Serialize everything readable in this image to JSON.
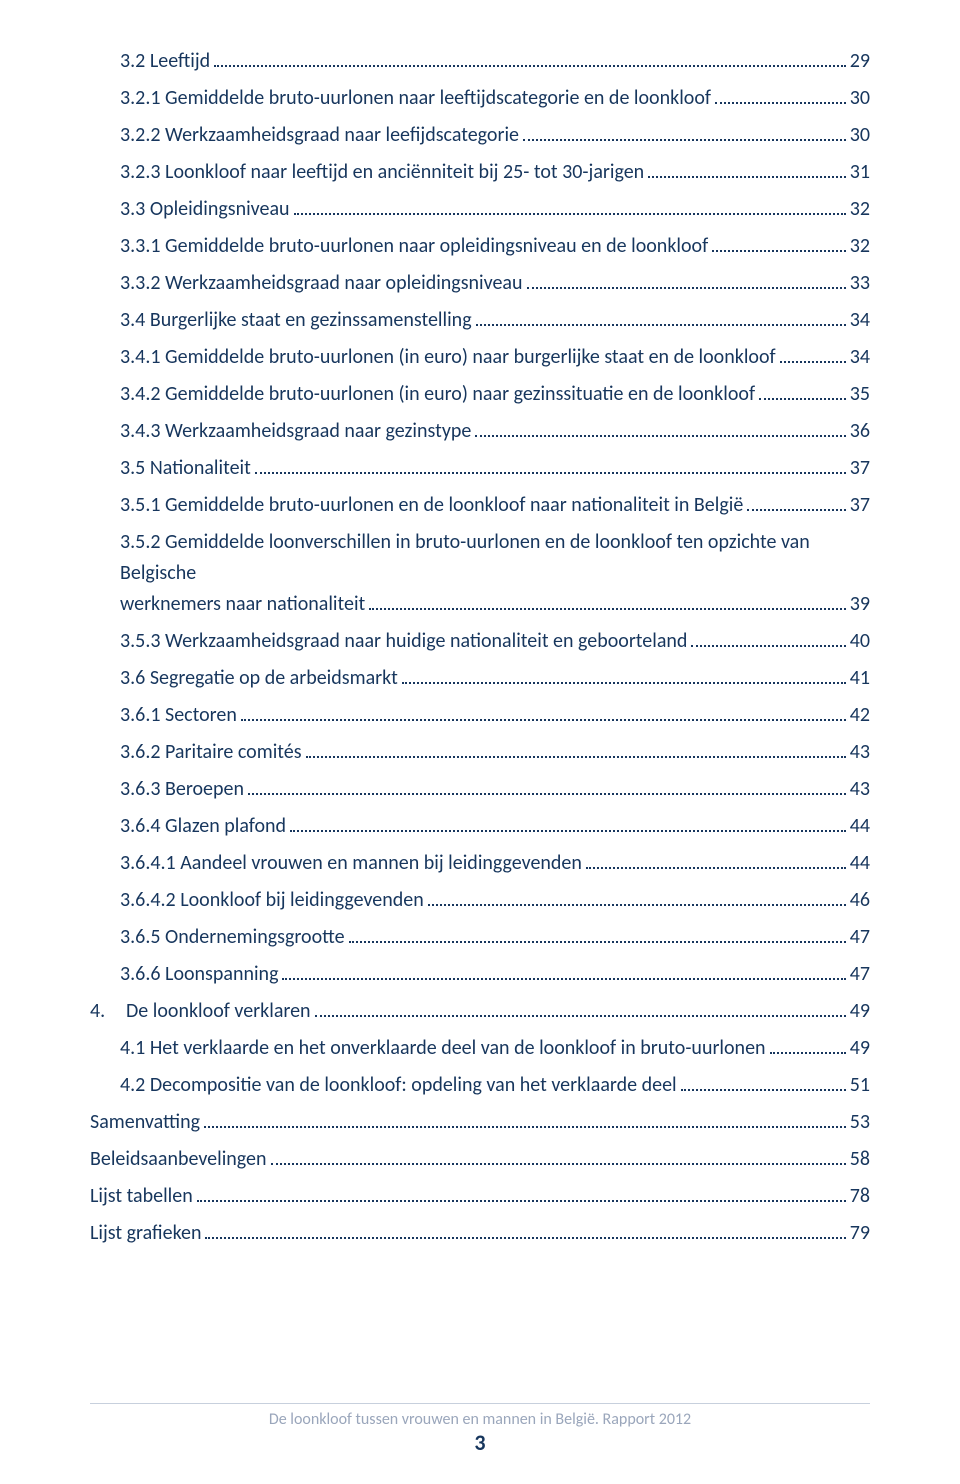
{
  "colors": {
    "text": "#17365d",
    "divider": "#c7d0dd",
    "footer_text": "#9aa6bb",
    "background": "#ffffff"
  },
  "typography": {
    "family": "Calibri",
    "body_size_pt": 15,
    "footer_size_pt": 12
  },
  "toc": {
    "entries": [
      {
        "indent": 1,
        "label": "3.2 Leeftijd",
        "page": "29",
        "wrap": false
      },
      {
        "indent": 2,
        "label": "3.2.1 Gemiddelde bruto-uurlonen naar leeftijdscategorie en de loonkloof",
        "page": "30",
        "wrap": false
      },
      {
        "indent": 2,
        "label": "3.2.2 Werkzaamheidsgraad naar leefijdscategorie",
        "page": "30",
        "wrap": false
      },
      {
        "indent": 2,
        "label": "3.2.3 Loonkloof naar leeftijd en anciënniteit bij 25- tot 30-jarigen",
        "page": "31",
        "wrap": false
      },
      {
        "indent": 1,
        "label": "3.3 Opleidingsniveau",
        "page": "32",
        "wrap": false
      },
      {
        "indent": 2,
        "label": "3.3.1 Gemiddelde bruto-uurlonen naar opleidingsniveau en de loonkloof",
        "page": "32",
        "wrap": false
      },
      {
        "indent": 2,
        "label": "3.3.2 Werkzaamheidsgraad naar opleidingsniveau",
        "page": "33",
        "wrap": false
      },
      {
        "indent": 1,
        "label": "3.4 Burgerlijke staat en gezinssamenstelling",
        "page": "34",
        "wrap": false
      },
      {
        "indent": 2,
        "label": "3.4.1 Gemiddelde bruto-uurlonen (in euro) naar burgerlijke staat en de loonkloof",
        "page": "34",
        "wrap": false
      },
      {
        "indent": 2,
        "label": "3.4.2 Gemiddelde bruto-uurlonen (in euro) naar gezinssituatie en de loonkloof",
        "page": "35",
        "wrap": false
      },
      {
        "indent": 2,
        "label": "3.4.3 Werkzaamheidsgraad naar gezinstype",
        "page": "36",
        "wrap": false
      },
      {
        "indent": 1,
        "label": "3.5 Nationaliteit",
        "page": "37",
        "wrap": false
      },
      {
        "indent": 2,
        "label": "3.5.1 Gemiddelde bruto-uurlonen en de loonkloof naar nationaliteit in België",
        "page": "37",
        "wrap": false
      },
      {
        "indent": 2,
        "label_line1": "3.5.2 Gemiddelde loonverschillen in bruto-uurlonen en de loonkloof ten opzichte van Belgische",
        "label_line2": "werknemers naar nationaliteit",
        "page": "39",
        "wrap": true
      },
      {
        "indent": 2,
        "label": "3.5.3 Werkzaamheidsgraad naar huidige nationaliteit en geboorteland",
        "page": "40",
        "wrap": false
      },
      {
        "indent": 1,
        "label": "3.6 Segregatie op de arbeidsmarkt",
        "page": "41",
        "wrap": false
      },
      {
        "indent": 2,
        "label": "3.6.1 Sectoren",
        "page": "42",
        "wrap": false
      },
      {
        "indent": 2,
        "label": "3.6.2 Paritaire comités",
        "page": "43",
        "wrap": false
      },
      {
        "indent": 2,
        "label": "3.6.3 Beroepen",
        "page": "43",
        "wrap": false
      },
      {
        "indent": 2,
        "label": "3.6.4 Glazen plafond",
        "page": "44",
        "wrap": false
      },
      {
        "indent": 2,
        "label": "3.6.4.1 Aandeel vrouwen en mannen bij leidinggevenden",
        "page": "44",
        "wrap": false
      },
      {
        "indent": 2,
        "label": "3.6.4.2 Loonkloof bij leidinggevenden",
        "page": "46",
        "wrap": false
      },
      {
        "indent": 2,
        "label": "3.6.5 Ondernemingsgrootte",
        "page": "47",
        "wrap": false
      },
      {
        "indent": 2,
        "label": "3.6.6 Loonspanning",
        "page": "47",
        "wrap": false
      },
      {
        "indent": 0,
        "num": "4.",
        "label": "De loonkloof verklaren",
        "page": "49",
        "wrap": false
      },
      {
        "indent": 1,
        "label": "4.1 Het verklaarde en het onverklaarde deel van de loonkloof in bruto-uurlonen",
        "page": "49",
        "wrap": false
      },
      {
        "indent": 1,
        "label": "4.2 Decompositie van de loonkloof: opdeling van het verklaarde deel",
        "page": "51",
        "wrap": false
      },
      {
        "indent": 0,
        "label": "Samenvatting",
        "page": "53",
        "wrap": false
      },
      {
        "indent": 0,
        "label": "Beleidsaanbevelingen",
        "page": "58",
        "wrap": false
      },
      {
        "indent": 0,
        "label": "Lijst tabellen",
        "page": "78",
        "wrap": false
      },
      {
        "indent": 0,
        "label": "Lijst grafieken",
        "page": "79",
        "wrap": false
      }
    ]
  },
  "footer": {
    "title": "De loonkloof tussen vrouwen en mannen in België. Rapport 2012",
    "page_number": "3"
  }
}
